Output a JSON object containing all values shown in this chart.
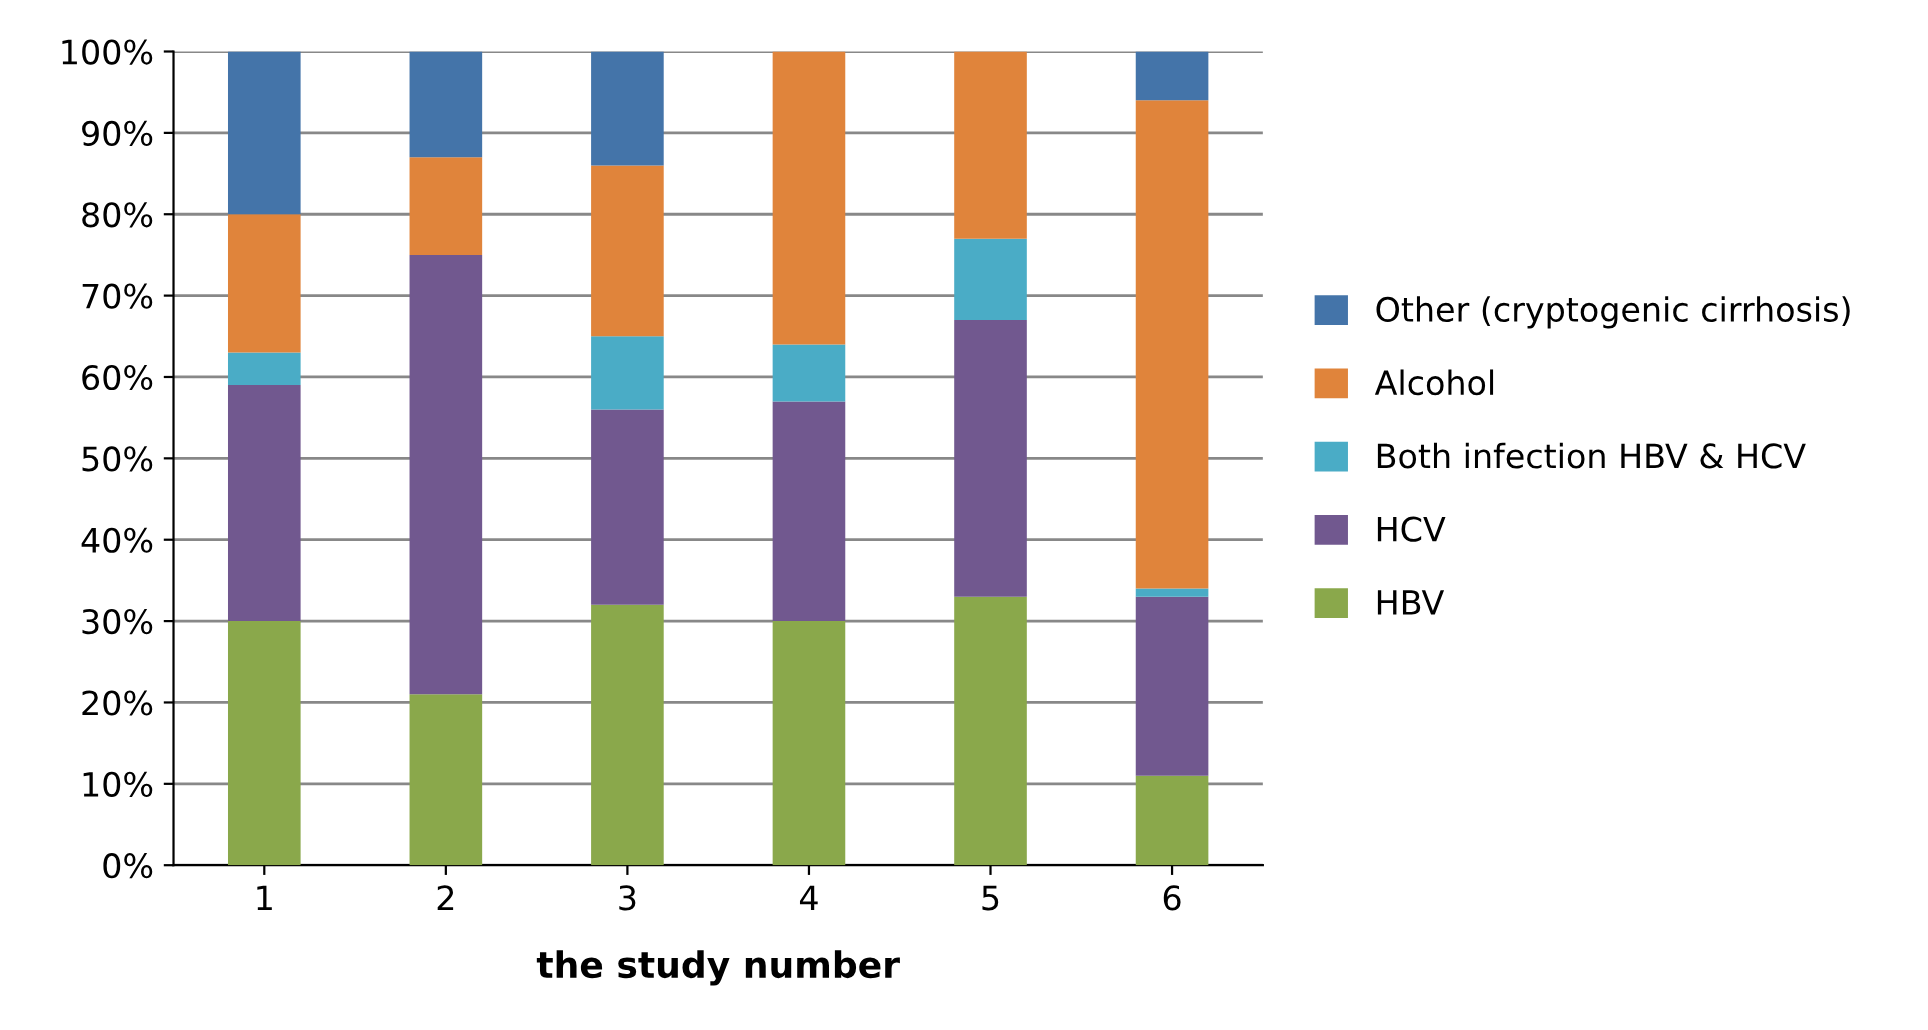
{
  "chart_data": {
    "type": "bar",
    "stacked": true,
    "xlabel": "the study number",
    "categories": [
      "1",
      "2",
      "3",
      "4",
      "5",
      "6"
    ],
    "series": [
      {
        "name": "HBV",
        "color": "#8aa84b",
        "values": [
          30,
          21,
          32,
          30,
          33,
          11
        ]
      },
      {
        "name": "HCV",
        "color": "#71588f",
        "values": [
          29,
          54,
          24,
          27,
          34,
          22
        ]
      },
      {
        "name": "Both infection HBV & HCV",
        "color": "#4aacc6",
        "values": [
          4,
          0,
          9,
          7,
          10,
          1
        ]
      },
      {
        "name": "Alcohol",
        "color": "#e0843b",
        "values": [
          17,
          12,
          21,
          36,
          23,
          60
        ]
      },
      {
        "name": "Other (cryptogenic cirrhosis)",
        "color": "#4474a9",
        "values": [
          20,
          13,
          14,
          0,
          0,
          6
        ]
      }
    ],
    "ylim": [
      0,
      100
    ],
    "yticks": [
      {
        "value": 0,
        "label": "0%"
      },
      {
        "value": 10,
        "label": "10%"
      },
      {
        "value": 20,
        "label": "20%"
      },
      {
        "value": 30,
        "label": "30%"
      },
      {
        "value": 40,
        "label": "40%"
      },
      {
        "value": 50,
        "label": "50%"
      },
      {
        "value": 60,
        "label": "60%"
      },
      {
        "value": 70,
        "label": "70%"
      },
      {
        "value": 80,
        "label": "80%"
      },
      {
        "value": 90,
        "label": "90%"
      },
      {
        "value": 100,
        "label": "100%"
      }
    ],
    "grid": "y",
    "legend": "right"
  }
}
